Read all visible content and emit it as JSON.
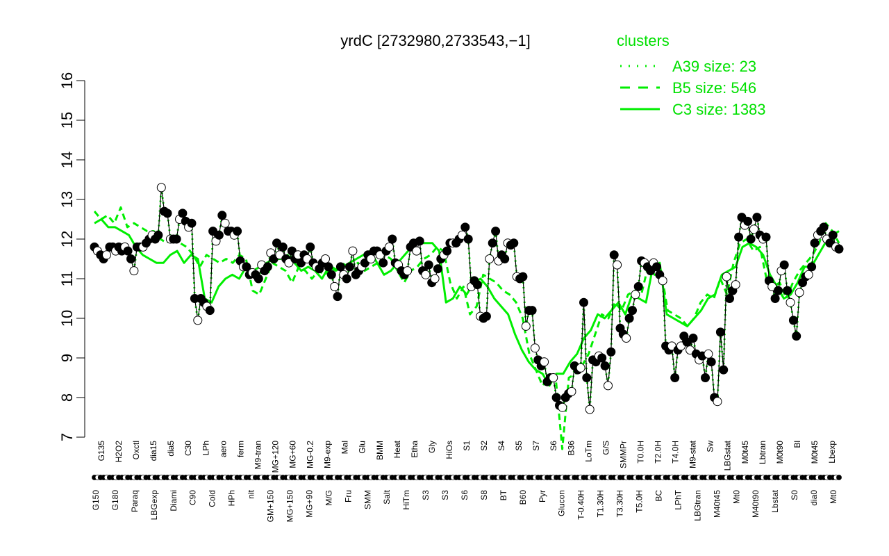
{
  "chart_data": {
    "type": "line",
    "title": "yrdC [2732980,2733543,−1]",
    "xlabel": "",
    "ylabel": "",
    "ylim": [
      7,
      16
    ],
    "yticks": [
      7,
      8,
      9,
      10,
      11,
      12,
      13,
      14,
      15,
      16
    ],
    "grid": false,
    "legend": {
      "title": "clusters",
      "placement": "top-right",
      "entries": [
        {
          "label": "A39 size: 23",
          "style": "dotted",
          "color": "#00ee00"
        },
        {
          "label": "B5 size: 546",
          "style": "dashed",
          "color": "#00ee00"
        },
        {
          "label": "C3 size: 1383",
          "style": "solid",
          "color": "#00ee00"
        }
      ]
    },
    "x_tick_labels_upper": [
      "G135",
      "H2O2",
      "Oxctl",
      "dia15",
      "dia5",
      "C30",
      "LPh",
      "aero",
      "ferm",
      "M9-tran",
      "MG+120",
      "MG+60",
      "MG-0.2",
      "M9-exp",
      "Mal",
      "Glu",
      "BMM",
      "Heat",
      "Etha",
      "Gly",
      "HiOs",
      "S1",
      "S2",
      "S4",
      "S5",
      "S7",
      "S6",
      "B36",
      "LoTm",
      "G/S",
      "SMMPr",
      "T0.0H",
      "T2.0H",
      "T4.0H",
      "M9-stat",
      "Sw",
      "LBGstat",
      "M0t45",
      "Lbtran",
      "M0t90",
      "Bl",
      "M0t45",
      "Lbexp"
    ],
    "x_tick_labels_lower": [
      "G150",
      "G180",
      "Paraq",
      "LBGexp",
      "Diami",
      "C90",
      "Cold",
      "HPh",
      "nit",
      "GM+150",
      "MG+150",
      "MG+90",
      "M/G",
      "Fru",
      "SMM",
      "Salt",
      "HiTm",
      "S3",
      "S3",
      "S6",
      "S8",
      "BT",
      "B60",
      "Pyr",
      "Glucon",
      "T-0.40H",
      "T1.30H",
      "T3.30H",
      "T5.0H",
      "BC",
      "LPhT",
      "LBGtran",
      "M40t45",
      "Mt0",
      "M40t90",
      "Lbstat",
      "S0",
      "dia0",
      "Mt0"
    ],
    "series": [
      {
        "values": [
          11.8,
          11.7,
          11.6,
          11.5,
          11.6,
          11.8,
          11.8,
          11.7,
          11.8,
          11.7,
          11.8,
          11.7,
          11.5,
          11.2,
          11.8,
          11.8,
          11.8,
          11.9,
          12.0,
          12.1,
          12.0,
          12.1,
          13.3,
          12.7,
          12.65,
          12.0,
          12.0,
          12.0,
          12.5,
          12.65,
          12.45,
          12.3,
          12.4,
          10.5,
          9.95,
          10.5,
          10.4,
          10.3,
          10.2,
          12.2,
          11.95,
          12.1,
          12.6,
          12.4,
          12.2,
          12.2,
          12.1,
          12.2,
          11.45,
          11.3,
          11.3,
          11.1,
          11.15,
          11.1,
          11.0,
          11.35,
          11.2,
          11.3,
          11.65,
          11.5,
          11.9,
          11.6,
          11.8,
          11.5,
          11.4,
          11.7,
          11.5,
          11.6,
          11.4,
          11.6,
          11.5,
          11.8,
          11.4,
          11.3,
          11.25,
          11.4,
          11.5,
          11.3,
          11.1,
          10.8,
          10.55,
          11.3,
          11.1,
          11.0,
          11.3,
          11.7,
          11.1,
          11.2,
          11.3,
          11.4,
          11.6,
          11.5,
          11.7,
          11.7,
          11.6,
          11.4,
          11.7,
          11.8,
          12.0,
          11.4,
          11.35,
          11.2,
          11.1,
          11.2,
          11.8,
          11.9,
          11.7,
          11.95,
          11.2,
          11.1,
          11.35,
          10.9,
          11.0,
          11.25,
          11.5,
          11.6,
          11.7,
          11.9,
          11.9,
          11.9,
          12.0,
          12.1,
          12.3,
          12.0,
          10.8,
          10.95,
          10.85,
          10.05,
          10.0,
          10.05,
          11.5,
          11.9,
          12.2,
          11.45,
          11.6,
          11.5,
          11.9,
          11.85,
          11.9,
          11.05,
          11.0,
          11.05,
          9.8,
          10.2,
          10.2,
          9.25,
          8.95,
          8.8,
          8.9,
          8.4,
          8.5,
          8.5,
          8.0,
          7.8,
          7.75,
          8.0,
          8.1,
          8.15,
          8.8,
          8.7,
          8.75,
          10.4,
          8.5,
          7.7,
          8.95,
          8.9,
          9.05,
          9.0,
          8.8,
          8.3,
          9.15,
          11.6,
          11.35,
          9.75,
          9.6,
          9.5,
          10.0,
          10.2,
          10.6,
          10.8,
          11.45,
          11.4,
          11.3,
          11.2,
          11.4,
          11.3,
          11.1,
          10.95,
          9.3,
          9.2,
          9.3,
          8.5,
          9.2,
          9.3,
          9.55,
          9.4,
          9.2,
          9.5,
          9.1,
          8.95,
          9.05,
          8.5,
          9.1,
          8.9,
          8.0,
          7.9,
          9.65,
          8.7,
          11.05,
          10.5,
          10.7,
          10.85,
          12.05,
          12.55,
          12.35,
          12.45,
          12.0,
          12.25,
          12.55,
          12.1,
          12.0,
          12.05,
          10.95,
          10.8,
          10.5,
          10.7,
          11.2,
          11.35,
          10.7,
          10.4,
          9.95,
          9.55,
          10.65,
          10.9,
          11.05,
          11.1,
          11.3,
          11.9,
          12.1,
          12.2,
          12.3,
          12.0,
          11.9,
          12.1,
          11.8,
          11.75
        ]
      },
      {
        "values": [
          12.7,
          12.5,
          12.6,
          12.4,
          12.8,
          12.3,
          12.4,
          12.3,
          12.2,
          12.2,
          12.0,
          11.9,
          12.1,
          11.9,
          11.8,
          11.6,
          11.3,
          11.6,
          11.5,
          11.4,
          11.5,
          11.4,
          11.6,
          11.5,
          10.7,
          10.6,
          11.0,
          11.4,
          11.3,
          11.2,
          10.9,
          11.3,
          11.2,
          11.0,
          11.2,
          11.1,
          11.3,
          11.2,
          11.4,
          11.3,
          11.4,
          11.2,
          11.3,
          11.4,
          11.6,
          11.5,
          11.2,
          10.9,
          11.2,
          11.3,
          11.5,
          11.6,
          11.8,
          11.7,
          10.9,
          10.5,
          10.8,
          10.1,
          10.3,
          11.1,
          11.0,
          10.9,
          10.7,
          10.6,
          10.4,
          10.0,
          9.1,
          8.7,
          8.3,
          8.5,
          8.5,
          6.7,
          8.5,
          8.6,
          8.8,
          9.1,
          9.6,
          10.1,
          10.0,
          10.4,
          10.2,
          10.6,
          10.7,
          10.6,
          11.3,
          11.1,
          11.2,
          10.2,
          10.1,
          10.0,
          9.8,
          10.0,
          10.4,
          10.6,
          10.5,
          11.0,
          10.6,
          11.4,
          11.9,
          12.0,
          11.7,
          11.8,
          11.0,
          10.8,
          10.9,
          10.5,
          10.9,
          11.2,
          11.4,
          11.6,
          11.9,
          12.4,
          12.2,
          11.9
        ]
      },
      {
        "values": [
          12.4,
          12.5,
          12.3,
          12.3,
          12.2,
          12.1,
          11.8,
          11.6,
          11.5,
          11.4,
          11.4,
          11.6,
          11.7,
          11.4,
          11.6,
          11.5,
          10.5,
          10.4,
          10.8,
          11.0,
          11.1,
          11.0,
          11.3,
          11.2,
          11.3,
          11.4,
          11.5,
          11.5,
          11.6,
          11.4,
          11.2,
          11.3,
          11.2,
          11.0,
          11.3,
          11.2,
          11.3,
          11.4,
          11.5,
          11.6,
          11.7,
          11.4,
          11.1,
          11.2,
          11.4,
          11.6,
          11.8,
          11.9,
          11.9,
          11.9,
          11.7,
          10.4,
          10.5,
          10.8,
          10.6,
          10.9,
          11.0,
          10.8,
          10.5,
          10.3,
          10.1,
          9.6,
          9.2,
          8.9,
          8.7,
          8.6,
          8.3,
          8.6,
          8.6,
          8.9,
          9.1,
          9.5,
          9.7,
          10.1,
          10.0,
          10.2,
          10.4,
          10.1,
          10.6,
          10.5,
          10.4,
          11.3,
          11.4,
          10.1,
          10.0,
          9.9,
          9.8,
          10.0,
          10.2,
          10.5,
          10.6,
          11.1,
          11.2,
          11.3,
          11.8,
          11.9,
          11.8,
          11.6,
          11.1,
          10.8,
          10.5,
          10.6,
          10.9,
          11.3,
          11.3,
          11.6,
          11.9,
          12.1,
          12.2
        ]
      }
    ]
  }
}
